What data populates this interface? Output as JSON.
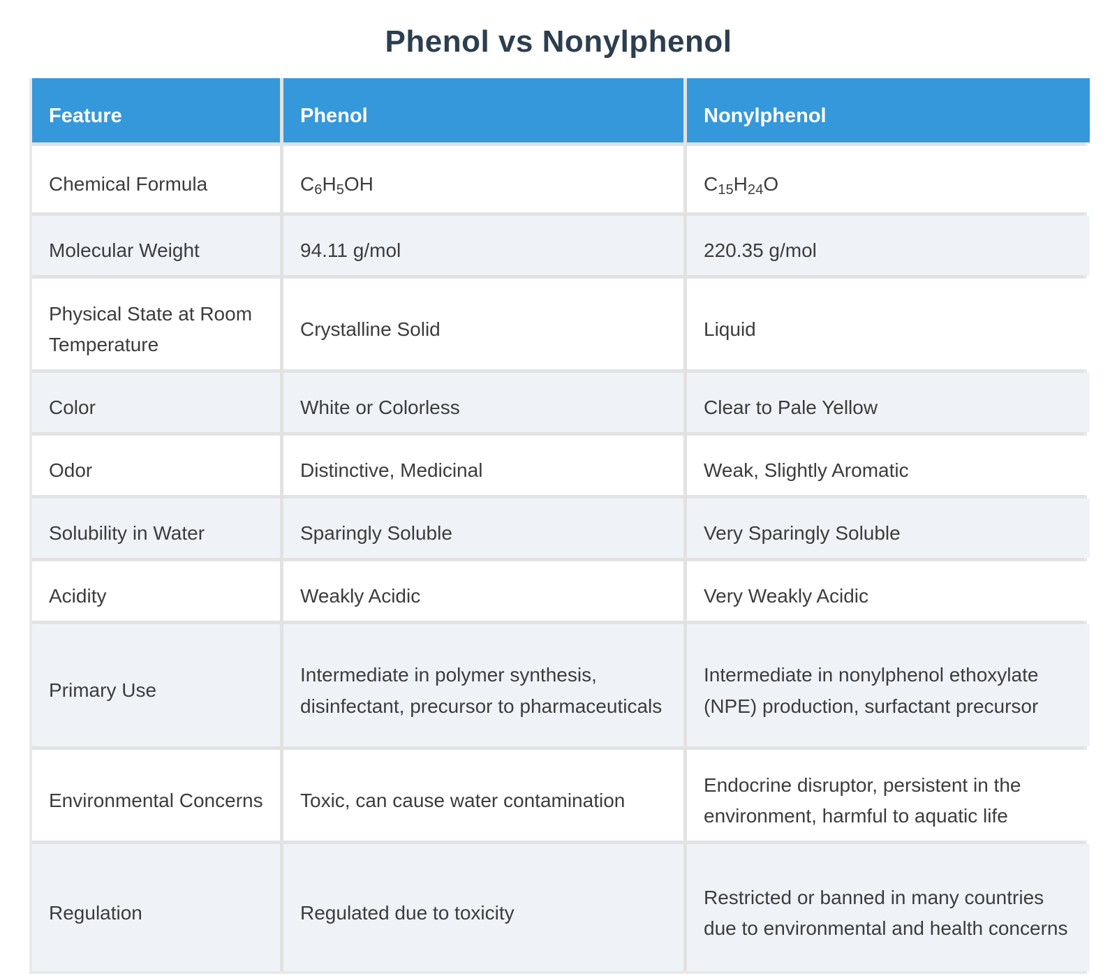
{
  "page_title": "Phenol vs Nonylphenol",
  "colors": {
    "header_bg": "#3598db",
    "header_text": "#ffffff",
    "row_bg": "#ffffff",
    "row_alt_bg": "#eff3f8",
    "grid_line": "#e2e2e2",
    "title_text": "#2c3e50",
    "body_text": "#3c3c3c"
  },
  "table": {
    "columns": [
      {
        "label": "Feature"
      },
      {
        "label": "Phenol"
      },
      {
        "label": "Nonylphenol"
      }
    ],
    "rows": [
      {
        "feature": {
          "text": "Chemical Formula"
        },
        "phenol": {
          "parts": [
            {
              "t": "C"
            },
            {
              "sub": "6"
            },
            {
              "t": "H"
            },
            {
              "sub": "5"
            },
            {
              "t": "OH"
            }
          ]
        },
        "nonylphenol": {
          "parts": [
            {
              "t": "C"
            },
            {
              "sub": "15"
            },
            {
              "t": "H"
            },
            {
              "sub": "24"
            },
            {
              "t": "O"
            }
          ]
        }
      },
      {
        "feature": {
          "text": "Molecular Weight"
        },
        "phenol": {
          "text": "94.11 g/mol"
        },
        "nonylphenol": {
          "text": "220.35 g/mol"
        }
      },
      {
        "feature": {
          "text": "Physical State at Room Temperature"
        },
        "phenol": {
          "text": "Crystalline Solid"
        },
        "nonylphenol": {
          "text": "Liquid"
        }
      },
      {
        "feature": {
          "text": "Color"
        },
        "phenol": {
          "text": "White or Colorless"
        },
        "nonylphenol": {
          "text": "Clear to Pale Yellow"
        }
      },
      {
        "feature": {
          "text": "Odor"
        },
        "phenol": {
          "text": "Distinctive, Medicinal"
        },
        "nonylphenol": {
          "text": "Weak, Slightly Aromatic"
        }
      },
      {
        "feature": {
          "text": "Solubility in Water"
        },
        "phenol": {
          "text": "Sparingly Soluble"
        },
        "nonylphenol": {
          "text": "Very Sparingly Soluble"
        }
      },
      {
        "feature": {
          "text": "Acidity"
        },
        "phenol": {
          "text": "Weakly Acidic"
        },
        "nonylphenol": {
          "text": "Very Weakly Acidic"
        }
      },
      {
        "feature": {
          "text": "Primary Use"
        },
        "phenol": {
          "text": "Intermediate in polymer synthesis, disinfectant, precursor to pharmaceuticals"
        },
        "nonylphenol": {
          "text": "Intermediate in nonylphenol ethoxylate (NPE) production, surfactant precursor"
        }
      },
      {
        "feature": {
          "text": "Environmental Concerns"
        },
        "phenol": {
          "text": "Toxic, can cause water contamination"
        },
        "nonylphenol": {
          "text": "Endocrine disruptor, persistent in the environment, harmful to aquatic life"
        }
      },
      {
        "feature": {
          "text": "Regulation"
        },
        "phenol": {
          "text": "Regulated due to toxicity"
        },
        "nonylphenol": {
          "text": "Restricted or banned in many countries due to environmental and health concerns"
        }
      }
    ]
  }
}
